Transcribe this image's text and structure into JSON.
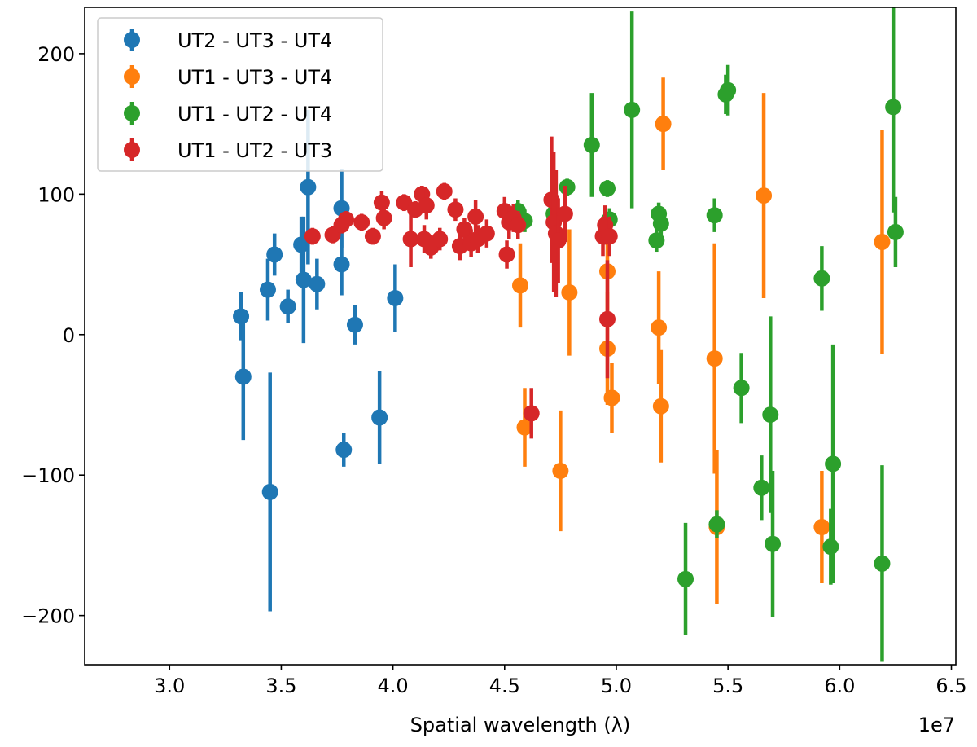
{
  "chart_data": {
    "type": "scatter",
    "title": "",
    "xlabel": "Spatial wavelength (λ)",
    "ylabel": "",
    "x_offset_label": "1e7",
    "x_unit_multiplier": 10000000,
    "xlim": [
      2.62,
      6.52
    ],
    "ylim": [
      -235,
      233
    ],
    "x_ticks": [
      3.0,
      3.5,
      4.0,
      4.5,
      5.0,
      5.5,
      6.0,
      6.5
    ],
    "x_tick_labels": [
      "3.0",
      "3.5",
      "4.0",
      "4.5",
      "5.0",
      "5.5",
      "6.0",
      "6.5"
    ],
    "y_ticks": [
      -200,
      -100,
      0,
      100,
      200
    ],
    "y_tick_labels": [
      "−200",
      "−100",
      "0",
      "100",
      "200"
    ],
    "grid": false,
    "legend_position": "top-left",
    "marker": "circle with vertical error bar",
    "series": [
      {
        "name": "UT2 - UT3 - UT4",
        "color": "#1f77b4",
        "points": [
          {
            "x": 3.32,
            "y": 13,
            "yerr_low": 17,
            "yerr_high": 17
          },
          {
            "x": 3.33,
            "y": -30,
            "yerr_low": 45,
            "yerr_high": 40
          },
          {
            "x": 3.44,
            "y": 32,
            "yerr_low": 22,
            "yerr_high": 22
          },
          {
            "x": 3.45,
            "y": -112,
            "yerr_low": 85,
            "yerr_high": 85
          },
          {
            "x": 3.47,
            "y": 57,
            "yerr_low": 15,
            "yerr_high": 15
          },
          {
            "x": 3.53,
            "y": 20,
            "yerr_low": 12,
            "yerr_high": 12
          },
          {
            "x": 3.59,
            "y": 64,
            "yerr_low": 20,
            "yerr_high": 20
          },
          {
            "x": 3.6,
            "y": 39,
            "yerr_low": 45,
            "yerr_high": 45
          },
          {
            "x": 3.62,
            "y": 105,
            "yerr_low": 55,
            "yerr_high": 55
          },
          {
            "x": 3.66,
            "y": 36,
            "yerr_low": 18,
            "yerr_high": 18
          },
          {
            "x": 3.77,
            "y": 90,
            "yerr_low": 28,
            "yerr_high": 28
          },
          {
            "x": 3.77,
            "y": 50,
            "yerr_low": 22,
            "yerr_high": 22
          },
          {
            "x": 3.78,
            "y": -82,
            "yerr_low": 12,
            "yerr_high": 12
          },
          {
            "x": 3.83,
            "y": 7,
            "yerr_low": 14,
            "yerr_high": 14
          },
          {
            "x": 3.94,
            "y": -59,
            "yerr_low": 33,
            "yerr_high": 33
          },
          {
            "x": 4.01,
            "y": 26,
            "yerr_low": 24,
            "yerr_high": 24
          }
        ]
      },
      {
        "name": "UT1 - UT3 - UT4",
        "color": "#ff7f0e",
        "points": [
          {
            "x": 4.57,
            "y": 35,
            "yerr_low": 30,
            "yerr_high": 30
          },
          {
            "x": 4.59,
            "y": -66,
            "yerr_low": 28,
            "yerr_high": 28
          },
          {
            "x": 4.75,
            "y": -97,
            "yerr_low": 43,
            "yerr_high": 43
          },
          {
            "x": 4.79,
            "y": 30,
            "yerr_low": 45,
            "yerr_high": 45
          },
          {
            "x": 4.96,
            "y": 45,
            "yerr_low": 30,
            "yerr_high": 30
          },
          {
            "x": 4.96,
            "y": -10,
            "yerr_low": 40,
            "yerr_high": 40
          },
          {
            "x": 4.98,
            "y": -45,
            "yerr_low": 25,
            "yerr_high": 25
          },
          {
            "x": 5.19,
            "y": 5,
            "yerr_low": 40,
            "yerr_high": 40
          },
          {
            "x": 5.2,
            "y": -51,
            "yerr_low": 40,
            "yerr_high": 40
          },
          {
            "x": 5.21,
            "y": 150,
            "yerr_low": 33,
            "yerr_high": 33
          },
          {
            "x": 5.44,
            "y": -17,
            "yerr_low": 82,
            "yerr_high": 82
          },
          {
            "x": 5.45,
            "y": -137,
            "yerr_low": 55,
            "yerr_high": 55
          },
          {
            "x": 5.66,
            "y": 99,
            "yerr_low": 73,
            "yerr_high": 73
          },
          {
            "x": 5.92,
            "y": -137,
            "yerr_low": 40,
            "yerr_high": 40
          },
          {
            "x": 6.19,
            "y": 66,
            "yerr_low": 80,
            "yerr_high": 80
          }
        ]
      },
      {
        "name": "UT1 - UT2 - UT4",
        "color": "#2ca02c",
        "points": [
          {
            "x": 4.56,
            "y": 88,
            "yerr_low": 8,
            "yerr_high": 8
          },
          {
            "x": 4.59,
            "y": 81,
            "yerr_low": 8,
            "yerr_high": 8
          },
          {
            "x": 4.72,
            "y": 86,
            "yerr_low": 6,
            "yerr_high": 6
          },
          {
            "x": 4.78,
            "y": 105,
            "yerr_low": 6,
            "yerr_high": 6
          },
          {
            "x": 4.89,
            "y": 135,
            "yerr_low": 37,
            "yerr_high": 37
          },
          {
            "x": 4.96,
            "y": 104,
            "yerr_low": 6,
            "yerr_high": 6
          },
          {
            "x": 4.97,
            "y": 82,
            "yerr_low": 8,
            "yerr_high": 8
          },
          {
            "x": 5.07,
            "y": 160,
            "yerr_low": 70,
            "yerr_high": 70
          },
          {
            "x": 5.18,
            "y": 67,
            "yerr_low": 8,
            "yerr_high": 8
          },
          {
            "x": 5.19,
            "y": 86,
            "yerr_low": 8,
            "yerr_high": 8
          },
          {
            "x": 5.2,
            "y": 79,
            "yerr_low": 8,
            "yerr_high": 8
          },
          {
            "x": 5.31,
            "y": -174,
            "yerr_low": 40,
            "yerr_high": 40
          },
          {
            "x": 5.44,
            "y": 85,
            "yerr_low": 12,
            "yerr_high": 12
          },
          {
            "x": 5.45,
            "y": -135,
            "yerr_low": 10,
            "yerr_high": 10
          },
          {
            "x": 5.49,
            "y": 171,
            "yerr_low": 14,
            "yerr_high": 14
          },
          {
            "x": 5.5,
            "y": 174,
            "yerr_low": 18,
            "yerr_high": 18
          },
          {
            "x": 5.56,
            "y": -38,
            "yerr_low": 25,
            "yerr_high": 25
          },
          {
            "x": 5.65,
            "y": -109,
            "yerr_low": 23,
            "yerr_high": 23
          },
          {
            "x": 5.69,
            "y": -57,
            "yerr_low": 70,
            "yerr_high": 70
          },
          {
            "x": 5.7,
            "y": -149,
            "yerr_low": 52,
            "yerr_high": 52
          },
          {
            "x": 5.92,
            "y": 40,
            "yerr_low": 23,
            "yerr_high": 23
          },
          {
            "x": 5.96,
            "y": -151,
            "yerr_low": 27,
            "yerr_high": 27
          },
          {
            "x": 5.97,
            "y": -92,
            "yerr_low": 85,
            "yerr_high": 85
          },
          {
            "x": 6.19,
            "y": -163,
            "yerr_low": 70,
            "yerr_high": 70
          },
          {
            "x": 6.24,
            "y": 162,
            "yerr_low": 75,
            "yerr_high": 75
          },
          {
            "x": 6.25,
            "y": 73,
            "yerr_low": 25,
            "yerr_high": 25
          }
        ]
      },
      {
        "name": "UT1 - UT2 - UT3",
        "color": "#d62728",
        "points": [
          {
            "x": 3.64,
            "y": 70,
            "yerr_low": 6,
            "yerr_high": 6
          },
          {
            "x": 3.73,
            "y": 71,
            "yerr_low": 6,
            "yerr_high": 6
          },
          {
            "x": 3.77,
            "y": 78,
            "yerr_low": 6,
            "yerr_high": 6
          },
          {
            "x": 3.79,
            "y": 82,
            "yerr_low": 6,
            "yerr_high": 6
          },
          {
            "x": 3.86,
            "y": 80,
            "yerr_low": 6,
            "yerr_high": 6
          },
          {
            "x": 3.91,
            "y": 70,
            "yerr_low": 6,
            "yerr_high": 6
          },
          {
            "x": 3.95,
            "y": 94,
            "yerr_low": 8,
            "yerr_high": 8
          },
          {
            "x": 3.96,
            "y": 83,
            "yerr_low": 8,
            "yerr_high": 8
          },
          {
            "x": 4.05,
            "y": 94,
            "yerr_low": 6,
            "yerr_high": 6
          },
          {
            "x": 4.08,
            "y": 68,
            "yerr_low": 20,
            "yerr_high": 20
          },
          {
            "x": 4.1,
            "y": 89,
            "yerr_low": 6,
            "yerr_high": 6
          },
          {
            "x": 4.13,
            "y": 100,
            "yerr_low": 6,
            "yerr_high": 6
          },
          {
            "x": 4.14,
            "y": 68,
            "yerr_low": 10,
            "yerr_high": 10
          },
          {
            "x": 4.15,
            "y": 92,
            "yerr_low": 10,
            "yerr_high": 10
          },
          {
            "x": 4.17,
            "y": 62,
            "yerr_low": 8,
            "yerr_high": 8
          },
          {
            "x": 4.21,
            "y": 68,
            "yerr_low": 8,
            "yerr_high": 8
          },
          {
            "x": 4.23,
            "y": 102,
            "yerr_low": 6,
            "yerr_high": 6
          },
          {
            "x": 4.28,
            "y": 89,
            "yerr_low": 8,
            "yerr_high": 8
          },
          {
            "x": 4.3,
            "y": 63,
            "yerr_low": 10,
            "yerr_high": 10
          },
          {
            "x": 4.32,
            "y": 75,
            "yerr_low": 8,
            "yerr_high": 8
          },
          {
            "x": 4.35,
            "y": 65,
            "yerr_low": 10,
            "yerr_high": 10
          },
          {
            "x": 4.37,
            "y": 84,
            "yerr_low": 12,
            "yerr_high": 12
          },
          {
            "x": 4.38,
            "y": 68,
            "yerr_low": 10,
            "yerr_high": 10
          },
          {
            "x": 4.42,
            "y": 72,
            "yerr_low": 10,
            "yerr_high": 10
          },
          {
            "x": 4.5,
            "y": 88,
            "yerr_low": 10,
            "yerr_high": 10
          },
          {
            "x": 4.51,
            "y": 57,
            "yerr_low": 10,
            "yerr_high": 10
          },
          {
            "x": 4.52,
            "y": 80,
            "yerr_low": 12,
            "yerr_high": 12
          },
          {
            "x": 4.54,
            "y": 83,
            "yerr_low": 10,
            "yerr_high": 10
          },
          {
            "x": 4.56,
            "y": 78,
            "yerr_low": 10,
            "yerr_high": 10
          },
          {
            "x": 4.62,
            "y": -56,
            "yerr_low": 18,
            "yerr_high": 18
          },
          {
            "x": 4.71,
            "y": 96,
            "yerr_low": 45,
            "yerr_high": 45
          },
          {
            "x": 4.72,
            "y": 80,
            "yerr_low": 50,
            "yerr_high": 50
          },
          {
            "x": 4.73,
            "y": 72,
            "yerr_low": 45,
            "yerr_high": 45
          },
          {
            "x": 4.74,
            "y": 67,
            "yerr_low": 30,
            "yerr_high": 30
          },
          {
            "x": 4.77,
            "y": 86,
            "yerr_low": 20,
            "yerr_high": 20
          },
          {
            "x": 4.94,
            "y": 70,
            "yerr_low": 14,
            "yerr_high": 14
          },
          {
            "x": 4.95,
            "y": 78,
            "yerr_low": 14,
            "yerr_high": 14
          },
          {
            "x": 4.96,
            "y": 11,
            "yerr_low": 42,
            "yerr_high": 42
          },
          {
            "x": 4.97,
            "y": 70,
            "yerr_low": 14,
            "yerr_high": 14
          }
        ]
      }
    ]
  }
}
